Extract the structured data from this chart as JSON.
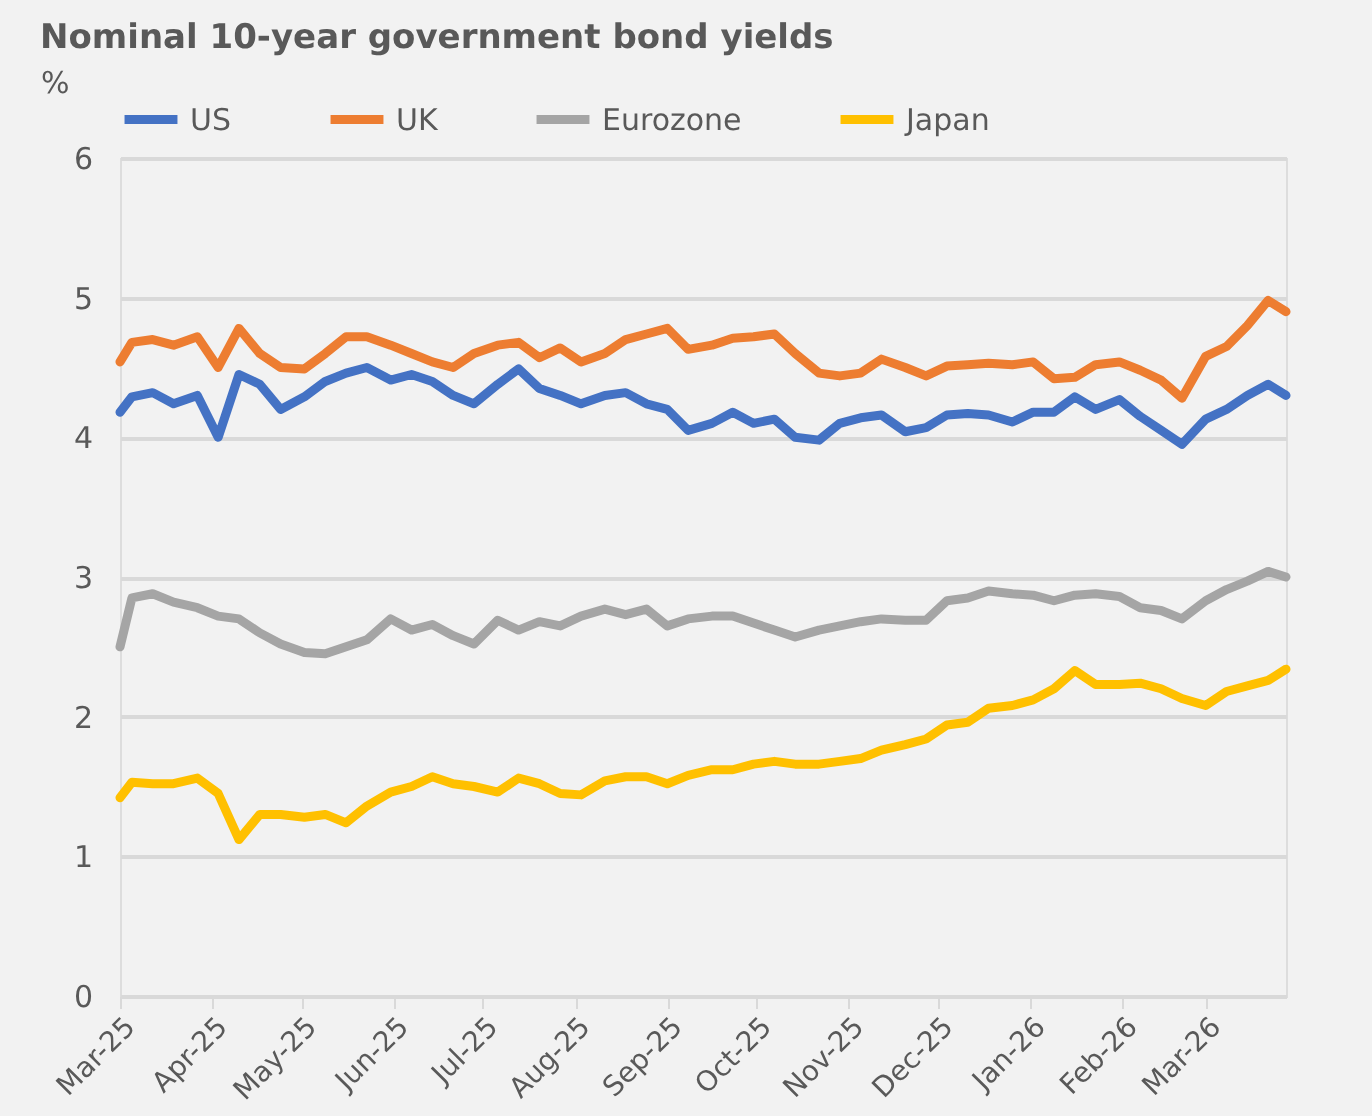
{
  "chart_data": {
    "type": "line",
    "title": "Nominal 10-year government bond yields",
    "ylabel": "%",
    "x": [
      "2025-03-01",
      "2025-03-05",
      "2025-03-12",
      "2025-03-19",
      "2025-03-27",
      "2025-04-03",
      "2025-04-10",
      "2025-04-17",
      "2025-04-24",
      "2025-05-02",
      "2025-05-09",
      "2025-05-16",
      "2025-05-23",
      "2025-05-31",
      "2025-06-07",
      "2025-06-14",
      "2025-06-21",
      "2025-06-28",
      "2025-07-06",
      "2025-07-13",
      "2025-07-20",
      "2025-07-27",
      "2025-08-03",
      "2025-08-11",
      "2025-08-18",
      "2025-08-25",
      "2025-09-01",
      "2025-09-08",
      "2025-09-16",
      "2025-09-23",
      "2025-09-30",
      "2025-10-07",
      "2025-10-14",
      "2025-10-22",
      "2025-10-29",
      "2025-11-05",
      "2025-11-12",
      "2025-11-20",
      "2025-11-27",
      "2025-12-04",
      "2025-12-11",
      "2025-12-18",
      "2025-12-26",
      "2026-01-02",
      "2026-01-09",
      "2026-01-16",
      "2026-01-23",
      "2026-01-31",
      "2026-02-07",
      "2026-02-14",
      "2026-02-21",
      "2026-03-01",
      "2026-03-08",
      "2026-03-15",
      "2026-03-22",
      "2026-03-28"
    ],
    "series": [
      {
        "name": "US",
        "color": "#4472c4",
        "values": [
          4.18,
          4.29,
          4.32,
          4.24,
          4.3,
          4.0,
          4.45,
          4.38,
          4.2,
          4.29,
          4.4,
          4.46,
          4.5,
          4.41,
          4.45,
          4.4,
          4.3,
          4.24,
          4.38,
          4.49,
          4.35,
          4.3,
          4.24,
          4.3,
          4.32,
          4.24,
          4.2,
          4.05,
          4.1,
          4.18,
          4.1,
          4.13,
          4.0,
          3.98,
          4.1,
          4.14,
          4.16,
          4.04,
          4.07,
          4.16,
          4.17,
          4.16,
          4.11,
          4.18,
          4.18,
          4.29,
          4.2,
          4.27,
          4.15,
          4.05,
          3.95,
          4.13,
          4.2,
          4.3,
          4.38,
          4.3
        ]
      },
      {
        "name": "UK",
        "color": "#ed7d31",
        "values": [
          4.54,
          4.68,
          4.7,
          4.66,
          4.72,
          4.5,
          4.78,
          4.6,
          4.5,
          4.49,
          4.6,
          4.72,
          4.72,
          4.66,
          4.6,
          4.54,
          4.5,
          4.6,
          4.66,
          4.68,
          4.57,
          4.64,
          4.54,
          4.6,
          4.7,
          4.74,
          4.78,
          4.63,
          4.66,
          4.71,
          4.72,
          4.74,
          4.6,
          4.46,
          4.44,
          4.46,
          4.56,
          4.5,
          4.44,
          4.51,
          4.52,
          4.53,
          4.52,
          4.54,
          4.42,
          4.43,
          4.52,
          4.54,
          4.48,
          4.41,
          4.28,
          4.58,
          4.65,
          4.8,
          4.98,
          4.9
        ]
      },
      {
        "name": "Eurozone",
        "color": "#a5a5a5",
        "values": [
          2.5,
          2.85,
          2.88,
          2.82,
          2.78,
          2.72,
          2.7,
          2.6,
          2.52,
          2.46,
          2.45,
          2.5,
          2.55,
          2.7,
          2.62,
          2.66,
          2.58,
          2.52,
          2.69,
          2.62,
          2.68,
          2.65,
          2.72,
          2.77,
          2.73,
          2.77,
          2.65,
          2.7,
          2.72,
          2.72,
          2.67,
          2.62,
          2.57,
          2.62,
          2.65,
          2.68,
          2.7,
          2.69,
          2.69,
          2.83,
          2.85,
          2.9,
          2.88,
          2.87,
          2.83,
          2.87,
          2.88,
          2.86,
          2.78,
          2.76,
          2.7,
          2.83,
          2.91,
          2.97,
          3.04,
          3.0
        ]
      },
      {
        "name": "Japan",
        "color": "#ffc000",
        "values": [
          1.42,
          1.53,
          1.52,
          1.52,
          1.56,
          1.45,
          1.12,
          1.3,
          1.3,
          1.28,
          1.3,
          1.24,
          1.36,
          1.46,
          1.5,
          1.57,
          1.52,
          1.5,
          1.46,
          1.56,
          1.52,
          1.45,
          1.44,
          1.54,
          1.57,
          1.57,
          1.52,
          1.58,
          1.62,
          1.62,
          1.66,
          1.68,
          1.66,
          1.66,
          1.68,
          1.7,
          1.76,
          1.8,
          1.84,
          1.94,
          1.96,
          2.06,
          2.08,
          2.12,
          2.2,
          2.33,
          2.23,
          2.23,
          2.24,
          2.2,
          2.13,
          2.08,
          2.18,
          2.22,
          2.26,
          2.34
        ]
      }
    ],
    "xlim": [
      "2025-03-01",
      "2026-03-28"
    ],
    "xticks": [
      {
        "value": "2025-03-01",
        "label": "Mar-25"
      },
      {
        "value": "2025-04-01",
        "label": "Apr-25"
      },
      {
        "value": "2025-05-01",
        "label": "May-25"
      },
      {
        "value": "2025-06-01",
        "label": "Jun-25"
      },
      {
        "value": "2025-07-01",
        "label": "Jul-25"
      },
      {
        "value": "2025-08-01",
        "label": "Aug-25"
      },
      {
        "value": "2025-09-01",
        "label": "Sep-25"
      },
      {
        "value": "2025-10-01",
        "label": "Oct-25"
      },
      {
        "value": "2025-11-01",
        "label": "Nov-25"
      },
      {
        "value": "2025-12-01",
        "label": "Dec-25"
      },
      {
        "value": "2026-01-01",
        "label": "Jan-26"
      },
      {
        "value": "2026-02-01",
        "label": "Feb-26"
      },
      {
        "value": "2026-03-01",
        "label": "Mar-26"
      }
    ],
    "ylim": [
      0,
      6
    ],
    "yticks": [
      0,
      1,
      2,
      3,
      4,
      5,
      6
    ],
    "grid": "y",
    "legend": "top",
    "marker": "none",
    "line_style": "solid"
  }
}
